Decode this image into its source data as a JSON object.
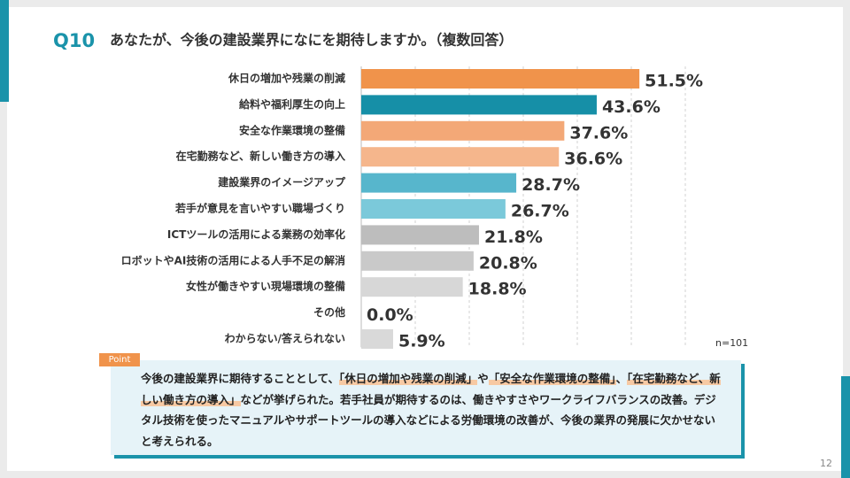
{
  "header": {
    "number": "Q10",
    "question": "あなたが、今後の建設業界になにを期待しますか。（複数回答）"
  },
  "chart_data": {
    "type": "bar",
    "orientation": "horizontal",
    "categories": [
      "休日の増加や残業の削減",
      "給料や福利厚生の向上",
      "安全な作業環境の整備",
      "在宅勤務など、新しい働き方の導入",
      "建設業界のイメージアップ",
      "若手が意見を言いやすい職場づくり",
      "ICTツールの活用による業務の効率化",
      "ロボットやAI技術の活用による人手不足の解消",
      "女性が働きやすい現場環境の整備",
      "その他",
      "わからない/答えられない"
    ],
    "values": [
      51.5,
      43.6,
      37.6,
      36.6,
      28.7,
      26.7,
      21.8,
      20.8,
      18.8,
      0.0,
      5.9
    ],
    "value_labels": [
      "51.5%",
      "43.6%",
      "37.6%",
      "36.6%",
      "28.7%",
      "26.7%",
      "21.8%",
      "20.8%",
      "18.8%",
      "0.0%",
      "5.9%"
    ],
    "colors": [
      "#f0934b",
      "#168fa7",
      "#f3a877",
      "#f5b68c",
      "#57b6cc",
      "#7bc9da",
      "#bdbdbd",
      "#c9c9c9",
      "#d7d7d7",
      "#d7d7d7",
      "#d9d9d9"
    ],
    "xlim": [
      0,
      60
    ],
    "grid_values": [
      10,
      20,
      30,
      40,
      50,
      60
    ],
    "note": "n=101"
  },
  "point": {
    "label": "Point",
    "segments": [
      "今後の建設業界に期待することとして、",
      "「休日の増加や残業の削減」",
      "や",
      "「安全な作業環境の整備」",
      "、",
      "「在宅勤務など、新しい働き方の導入」",
      "などが挙げられた。若手社員が期待するのは、働きやすさやワークライフバランスの改善。デジタル技術を使ったマニュアルやサポートツールの導入などによる労働環境の改善が、今後の業界の発展に欠かせないと考えられる。"
    ]
  },
  "page_number": "12"
}
